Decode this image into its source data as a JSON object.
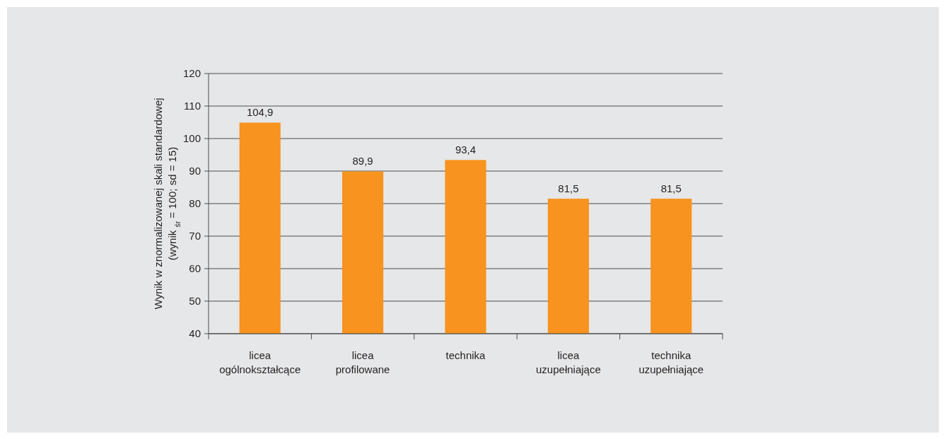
{
  "chart_data": {
    "type": "bar",
    "ylabel": "Wynik w znormalizowanej skali standardowej\n(wynik $_{śr}$ = 100; sd = 15)",
    "categories": [
      "licea\nogólnokształcące",
      "licea\nprofilowane",
      "technika",
      "licea\nuzupełniające",
      "technika\nuzupełniające"
    ],
    "values": [
      104.9,
      89.9,
      93.4,
      81.5,
      81.5
    ],
    "value_labels": [
      "104,9",
      "89,9",
      "93,4",
      "81,5",
      "81,5"
    ],
    "color": "#f7931e",
    "ylim": [
      40,
      120
    ],
    "yticks": [
      40,
      50,
      60,
      70,
      80,
      90,
      100,
      110,
      120
    ],
    "grid": "y"
  }
}
